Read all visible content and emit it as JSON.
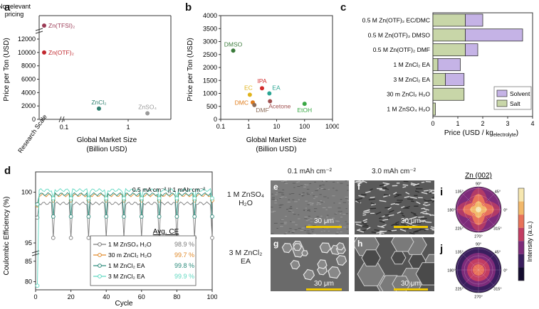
{
  "panels": {
    "a": "a",
    "b": "b",
    "c": "c",
    "d": "d",
    "e": "e",
    "f": "f",
    "g": "g",
    "h": "h",
    "i": "i",
    "j": "j"
  },
  "chart_data": [
    {
      "id": "a",
      "type": "scatter",
      "ylabel": "Price per Ton (USD)",
      "xlabel": "Global Market Size (Billion USD)",
      "y_ticks": [
        "0",
        "2000",
        "4000",
        "6000",
        "8000",
        "10000",
        "12000"
      ],
      "y_break_label": "No relevant pricing",
      "x_ticks": [
        "Research Scale",
        "0.1",
        "1"
      ],
      "points": [
        {
          "label": "Zn(TFSI)₂",
          "x": "Research Scale",
          "y": "No relevant pricing",
          "color": "#9b3a55"
        },
        {
          "label": "Zn(OTF)₂",
          "x": "Research Scale",
          "y": 10000,
          "color": "#c1272d"
        },
        {
          "label": "ZnCl₂",
          "x": 0.35,
          "y": 1600,
          "color": "#2f7f6f"
        },
        {
          "label": "ZnSO₄",
          "x": 2.0,
          "y": 900,
          "color": "#9a9a9a"
        }
      ]
    },
    {
      "id": "b",
      "type": "scatter",
      "ylabel": "Price per Ton (USD)",
      "xlabel": "Global Market Size (Billion USD)",
      "xscale": "log",
      "xlim": [
        0.1,
        1000
      ],
      "ylim": [
        0,
        4000
      ],
      "x_ticks": [
        "0.1",
        "1",
        "10",
        "100",
        "1000"
      ],
      "y_ticks": [
        "0",
        "500",
        "1000",
        "1500",
        "2000",
        "2500",
        "3000",
        "3500",
        "4000"
      ],
      "points": [
        {
          "label": "DMSO",
          "x": 0.28,
          "y": 2650,
          "color": "#3a7a3a"
        },
        {
          "label": "EC",
          "x": 1.1,
          "y": 950,
          "color": "#e0b31a"
        },
        {
          "label": "DMC",
          "x": 1.4,
          "y": 650,
          "color": "#e07b1a"
        },
        {
          "label": "DMF",
          "x": 1.6,
          "y": 550,
          "color": "#8c6d5a"
        },
        {
          "label": "IPA",
          "x": 3.0,
          "y": 1200,
          "color": "#d22a2a"
        },
        {
          "label": "EA",
          "x": 5.5,
          "y": 1000,
          "color": "#2aa593"
        },
        {
          "label": "Acetone",
          "x": 5.8,
          "y": 700,
          "color": "#a0504f"
        },
        {
          "label": "EtOH",
          "x": 100,
          "y": 600,
          "color": "#3aa845"
        }
      ]
    },
    {
      "id": "c",
      "type": "bar",
      "orientation": "horizontal",
      "stacked": true,
      "xlabel": "Price (USD / kg",
      "xlabel_sub": "electrolyte",
      "xlabel_end": ")",
      "xlim": [
        0,
        4
      ],
      "x_ticks": [
        "0",
        "1",
        "2",
        "3",
        "4"
      ],
      "categories": [
        "0.5 M Zn(OTF)₂ EC/DMC",
        "0.5 M Zn(OTF)₂ DMSO",
        "0.5 M Zn(OTF)₂ DMF",
        "1 M ZnCl₂ EA",
        "3 M ZnCl₂ EA",
        "30 m ZnCl₂ H₂O",
        "1 M ZnSO₄ H₂O"
      ],
      "series": [
        {
          "name": "Salt",
          "values": [
            1.3,
            1.3,
            1.3,
            0.2,
            0.5,
            1.25,
            0.1
          ],
          "color": "#c8d6a8"
        },
        {
          "name": "Solvent",
          "values": [
            0.7,
            2.3,
            0.5,
            0.9,
            0.75,
            0.0,
            0.0
          ],
          "color": "#c5b3e6"
        }
      ],
      "legend": "bottom-right"
    },
    {
      "id": "d",
      "type": "line",
      "ylabel": "Coulombic Efficiency (%)",
      "xlabel": "Cycle",
      "xlim": [
        0,
        100
      ],
      "x_ticks": [
        "0",
        "20",
        "40",
        "60",
        "80",
        "100"
      ],
      "y_ticks": [
        "80",
        "85",
        "95",
        "100"
      ],
      "annotation": "0.5 mA cm⁻² || 1 mAh cm⁻²",
      "legend_header": "Avg. CE",
      "series": [
        {
          "name": "1 M ZnSO₄ H₂O",
          "avg": "98.9 %",
          "color": "#7a7a7a",
          "base": 98.9,
          "dip": 95.5
        },
        {
          "name": "30 m ZnCl₂ H₂O",
          "avg": "99.7 %",
          "color": "#e08a2a",
          "base": 99.7,
          "dip": 99.2
        },
        {
          "name": "1 M ZnCl₂ EA",
          "avg": "99.8 %",
          "color": "#2a8a7a",
          "base": 99.8,
          "dip": 97.6
        },
        {
          "name": "3 M ZnCl₂ EA",
          "avg": "99.9 %",
          "color": "#5ed8c0",
          "base": 100.2,
          "dip": 99.4
        }
      ]
    },
    {
      "id": "i",
      "type": "heatmap",
      "title": "Zn (002)",
      "angle_ticks": [
        "90°",
        "45°",
        "0°",
        "315°",
        "270°",
        "225°",
        "180°",
        "135°"
      ],
      "colorbar_label": "Intensity (a.u.)"
    },
    {
      "id": "j",
      "type": "heatmap",
      "angle_ticks": [
        "90°",
        "45°",
        "0°",
        "315°",
        "270°",
        "225°",
        "180°",
        "135°"
      ]
    }
  ],
  "sem": {
    "col1": "0.1 mAh cm⁻²",
    "col2": "3.0 mAh cm⁻²",
    "row1": "1 M ZnSO₄ H₂O",
    "row2": "3 M ZnCl₂ EA",
    "scale": "30 μm"
  }
}
